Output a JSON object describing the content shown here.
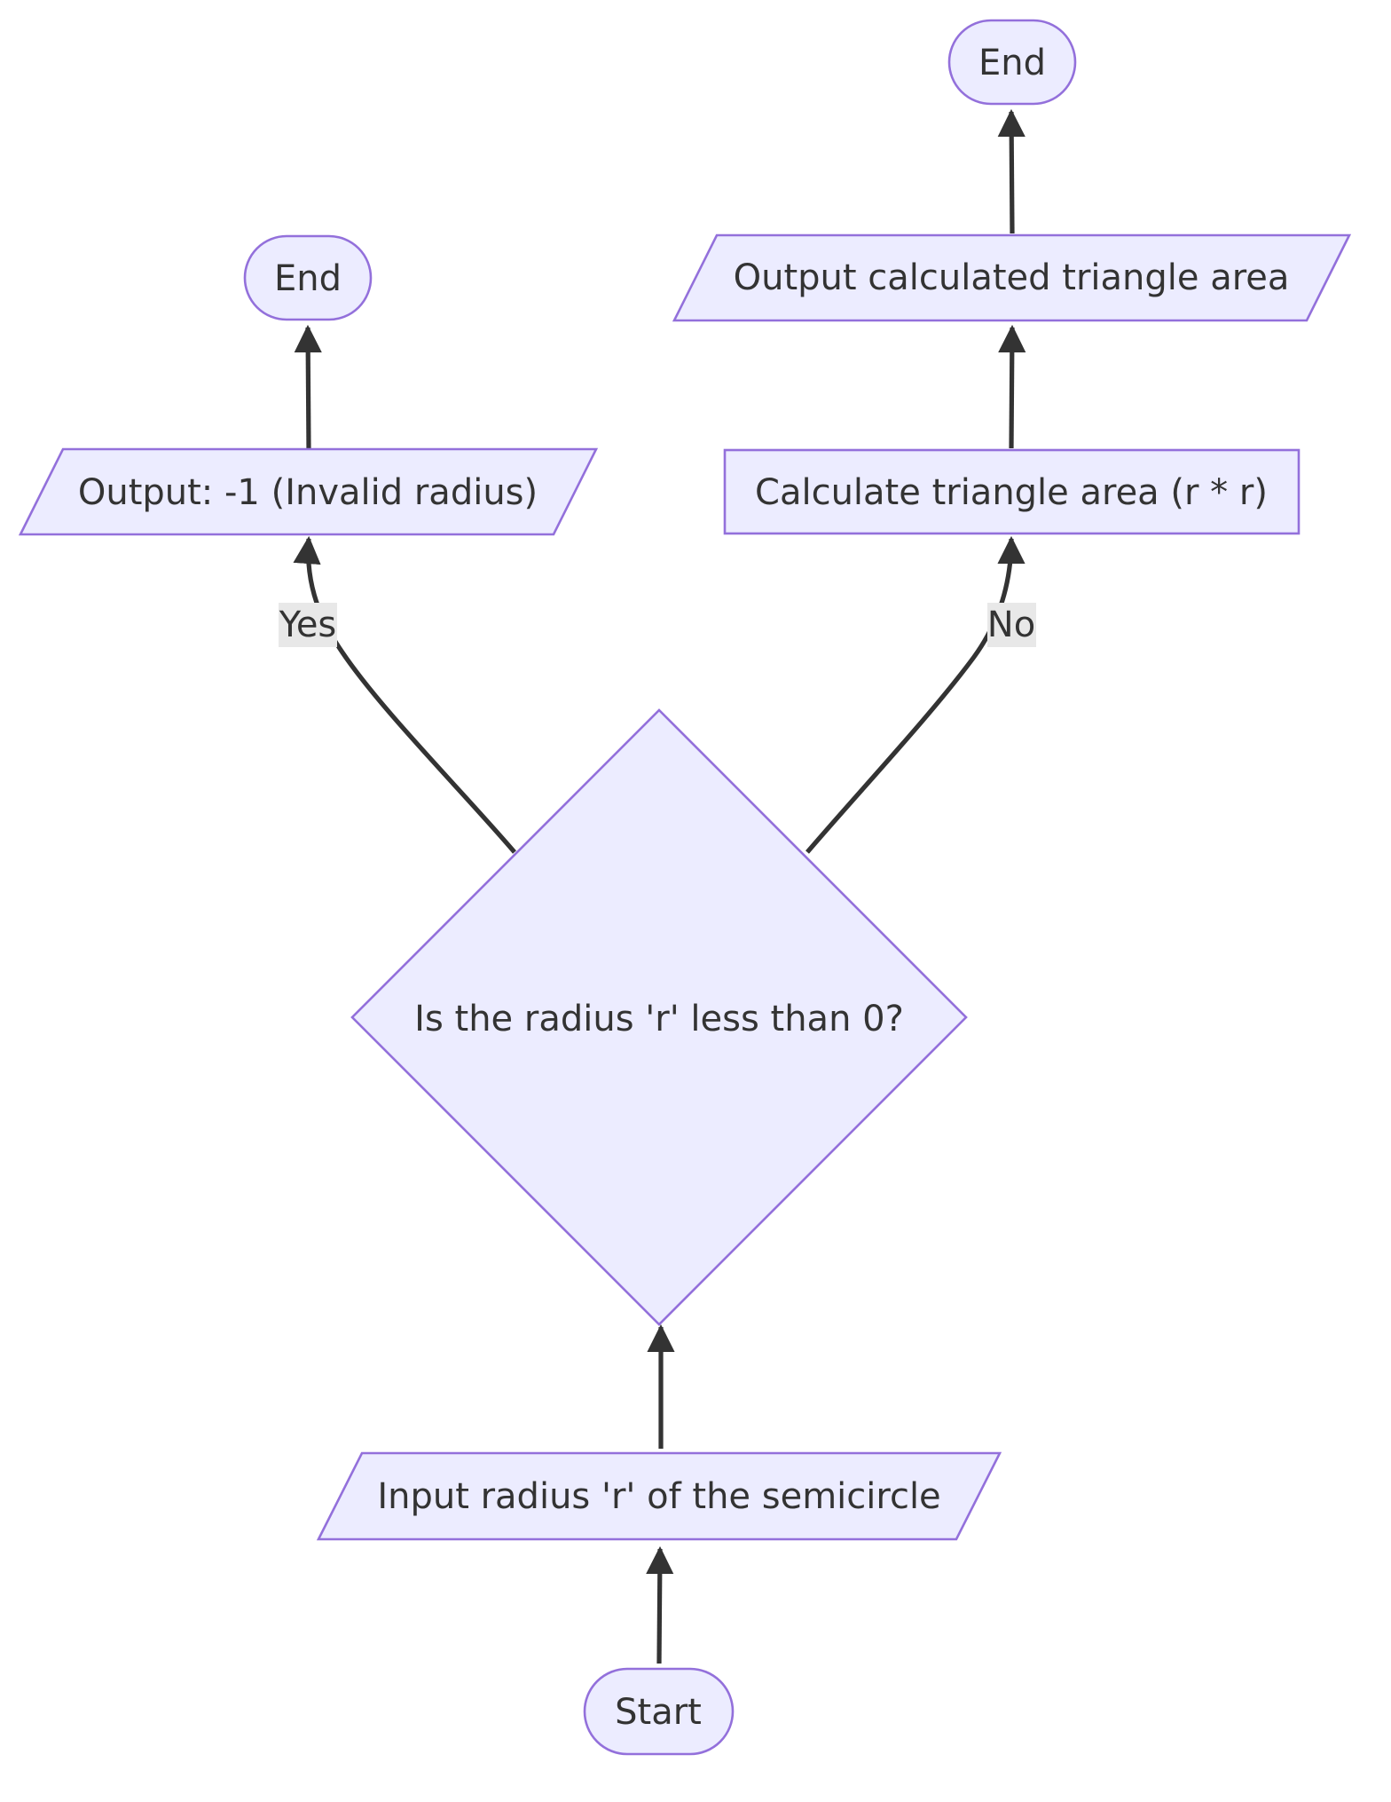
{
  "nodes": {
    "start": "Start",
    "input": "Input radius 'r' of the semicircle",
    "decision": "Is the radius 'r' less than 0?",
    "output_invalid": "Output: -1 (Invalid radius)",
    "end_left": "End",
    "calculate": "Calculate triangle area (r * r)",
    "output_area": "Output calculated triangle area",
    "end_right": "End"
  },
  "edge_labels": {
    "yes": "Yes",
    "no": "No"
  },
  "colors": {
    "node_fill": "#ECECFF",
    "node_stroke": "#9370DB",
    "edge": "#333333",
    "edge_label_bg": "#e8e8e8",
    "text": "#333333"
  }
}
